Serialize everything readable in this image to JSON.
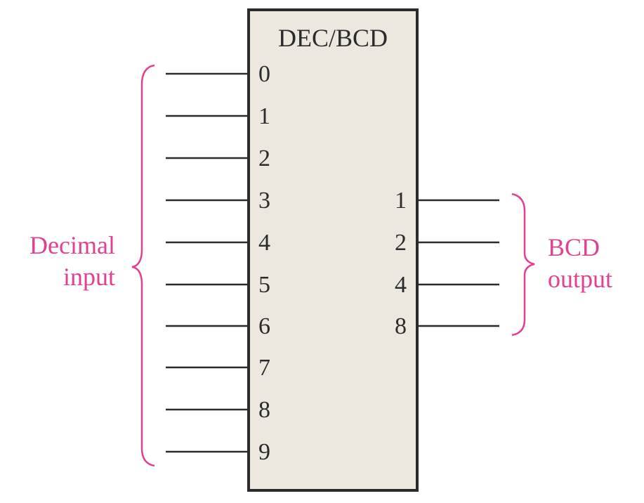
{
  "block": {
    "title": "DEC/BCD",
    "inputs": [
      "0",
      "1",
      "2",
      "3",
      "4",
      "5",
      "6",
      "7",
      "8",
      "9"
    ],
    "outputs": [
      "1",
      "2",
      "4",
      "8"
    ]
  },
  "labels": {
    "decimal_line1": "Decimal",
    "decimal_line2": "input",
    "bcd_line1": "BCD",
    "bcd_line2": "output"
  },
  "colors": {
    "block_fill": "#ece8df",
    "line": "#2b2b2b",
    "accent": "#e2418f"
  }
}
